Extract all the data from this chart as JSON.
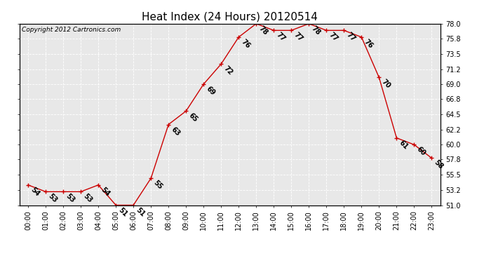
{
  "title": "Heat Index (24 Hours) 20120514",
  "copyright": "Copyright 2012 Cartronics.com",
  "hours": [
    0,
    1,
    2,
    3,
    4,
    5,
    6,
    7,
    8,
    9,
    10,
    11,
    12,
    13,
    14,
    15,
    16,
    17,
    18,
    19,
    20,
    21,
    22,
    23
  ],
  "values": [
    54,
    53,
    53,
    53,
    54,
    51,
    51,
    55,
    63,
    65,
    69,
    72,
    76,
    78,
    77,
    77,
    78,
    77,
    77,
    76,
    70,
    61,
    60,
    58
  ],
  "xlabels": [
    "00:00",
    "01:00",
    "02:00",
    "03:00",
    "04:00",
    "05:00",
    "06:00",
    "07:00",
    "08:00",
    "09:00",
    "10:00",
    "11:00",
    "12:00",
    "13:00",
    "14:00",
    "15:00",
    "16:00",
    "17:00",
    "18:00",
    "19:00",
    "20:00",
    "21:00",
    "22:00",
    "23:00"
  ],
  "yticks": [
    51.0,
    53.2,
    55.5,
    57.8,
    60.0,
    62.2,
    64.5,
    66.8,
    69.0,
    71.2,
    73.5,
    75.8,
    78.0
  ],
  "ylim": [
    51.0,
    78.0
  ],
  "line_color": "#cc0000",
  "marker_color": "#cc0000",
  "bg_color": "#ffffff",
  "plot_bg_color": "#e8e8e8",
  "grid_color": "#ffffff",
  "title_fontsize": 11,
  "label_fontsize": 7,
  "annotation_fontsize": 7,
  "copyright_fontsize": 6.5
}
